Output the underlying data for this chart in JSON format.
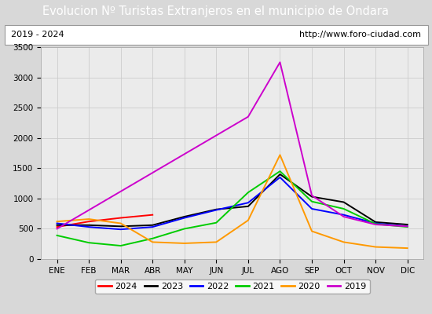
{
  "title": "Evolucion Nº Turistas Extranjeros en el municipio de Ondara",
  "subtitle_left": "2019 - 2024",
  "subtitle_right": "http://www.foro-ciudad.com",
  "months": [
    "ENE",
    "FEB",
    "MAR",
    "ABR",
    "MAY",
    "JUN",
    "JUL",
    "AGO",
    "SEP",
    "OCT",
    "NOV",
    "DIC"
  ],
  "ylim": [
    0,
    3500
  ],
  "yticks": [
    0,
    500,
    1000,
    1500,
    2000,
    2500,
    3000,
    3500
  ],
  "series": {
    "2024": {
      "color": "#ff0000",
      "data": [
        530,
        620,
        680,
        730,
        null,
        null,
        null,
        null,
        null,
        null,
        null,
        null
      ]
    },
    "2023": {
      "color": "#000000",
      "data": [
        560,
        560,
        540,
        560,
        700,
        820,
        870,
        1400,
        1030,
        940,
        610,
        570
      ]
    },
    "2022": {
      "color": "#0000ff",
      "data": [
        590,
        530,
        490,
        530,
        680,
        810,
        930,
        1350,
        830,
        730,
        590,
        540
      ]
    },
    "2021": {
      "color": "#00cc00",
      "data": [
        390,
        270,
        220,
        340,
        500,
        600,
        1100,
        1450,
        950,
        830,
        580,
        530
      ]
    },
    "2020": {
      "color": "#ff9900",
      "data": [
        620,
        660,
        590,
        280,
        260,
        280,
        640,
        1720,
        460,
        280,
        200,
        180
      ]
    },
    "2019": {
      "color": "#cc00cc",
      "data": [
        500,
        null,
        null,
        null,
        null,
        null,
        2350,
        3250,
        1050,
        700,
        570,
        540
      ]
    }
  },
  "title_bg": "#4472c4",
  "title_color": "#ffffff",
  "title_fontsize": 10.5,
  "subtitle_fontsize": 8,
  "outer_bg": "#d8d8d8",
  "inner_bg": "#e8e8e8",
  "plot_bg": "#ebebeb",
  "grid_color": "#cccccc",
  "legend_order": [
    "2024",
    "2023",
    "2022",
    "2021",
    "2020",
    "2019"
  ]
}
